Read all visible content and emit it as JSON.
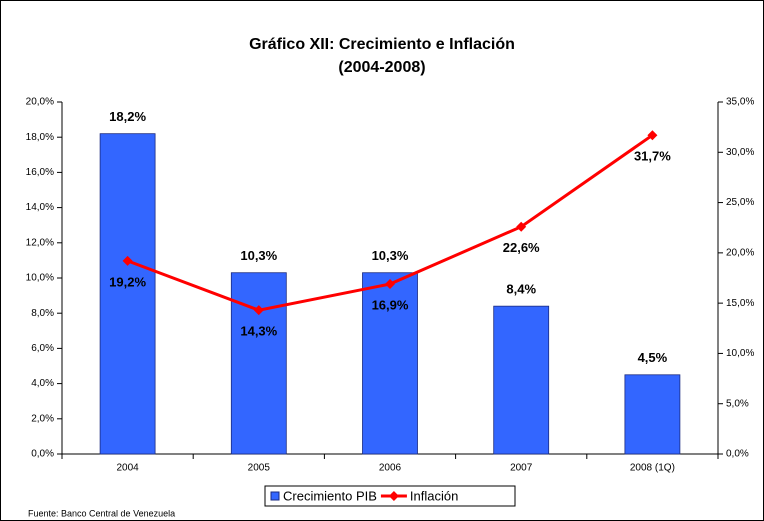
{
  "chart_data": {
    "type": "bar_line",
    "title": "Gráfico XII: Crecimiento e Inflación",
    "subtitle": "(2004-2008)",
    "source": "Fuente: Banco Central de Venezuela",
    "categories": [
      "2004",
      "2005",
      "2006",
      "2007",
      "2008 (1Q)"
    ],
    "series": [
      {
        "name": "Crecimiento PIB",
        "type": "bar",
        "color": "#3366ff",
        "values": [
          18.2,
          10.3,
          10.3,
          8.4,
          4.5
        ],
        "value_labels": [
          "18,2%",
          "10,3%",
          "10,3%",
          "8,4%",
          "4,5%"
        ]
      },
      {
        "name": "Inflación",
        "type": "line",
        "axis": "y2",
        "color": "#ff0000",
        "values": [
          19.2,
          14.3,
          16.9,
          22.6,
          31.7
        ],
        "value_labels": [
          "19,2%",
          "14,3%",
          "16,9%",
          "22,6%",
          "31,7%"
        ]
      }
    ],
    "ylim": [
      0,
      20
    ],
    "yticks": [
      {
        "value": 0,
        "label": "0,0%"
      },
      {
        "value": 2,
        "label": "2,0%"
      },
      {
        "value": 4,
        "label": "4,0%"
      },
      {
        "value": 6,
        "label": "6,0%"
      },
      {
        "value": 8,
        "label": "8,0%"
      },
      {
        "value": 10,
        "label": "10,0%"
      },
      {
        "value": 12,
        "label": "12,0%"
      },
      {
        "value": 14,
        "label": "14,0%"
      },
      {
        "value": 16,
        "label": "16,0%"
      },
      {
        "value": 18,
        "label": "18,0%"
      },
      {
        "value": 20,
        "label": "20,0%"
      }
    ],
    "y2lim": [
      0,
      35
    ],
    "y2ticks": [
      {
        "value": 0,
        "label": "0,0%"
      },
      {
        "value": 5,
        "label": "5,0%"
      },
      {
        "value": 10,
        "label": "10,0%"
      },
      {
        "value": 15,
        "label": "15,0%"
      },
      {
        "value": 20,
        "label": "20,0%"
      },
      {
        "value": 25,
        "label": "25,0%"
      },
      {
        "value": 30,
        "label": "30,0%"
      },
      {
        "value": 35,
        "label": "35,0%"
      }
    ],
    "grid": false,
    "legend": "bottom"
  }
}
